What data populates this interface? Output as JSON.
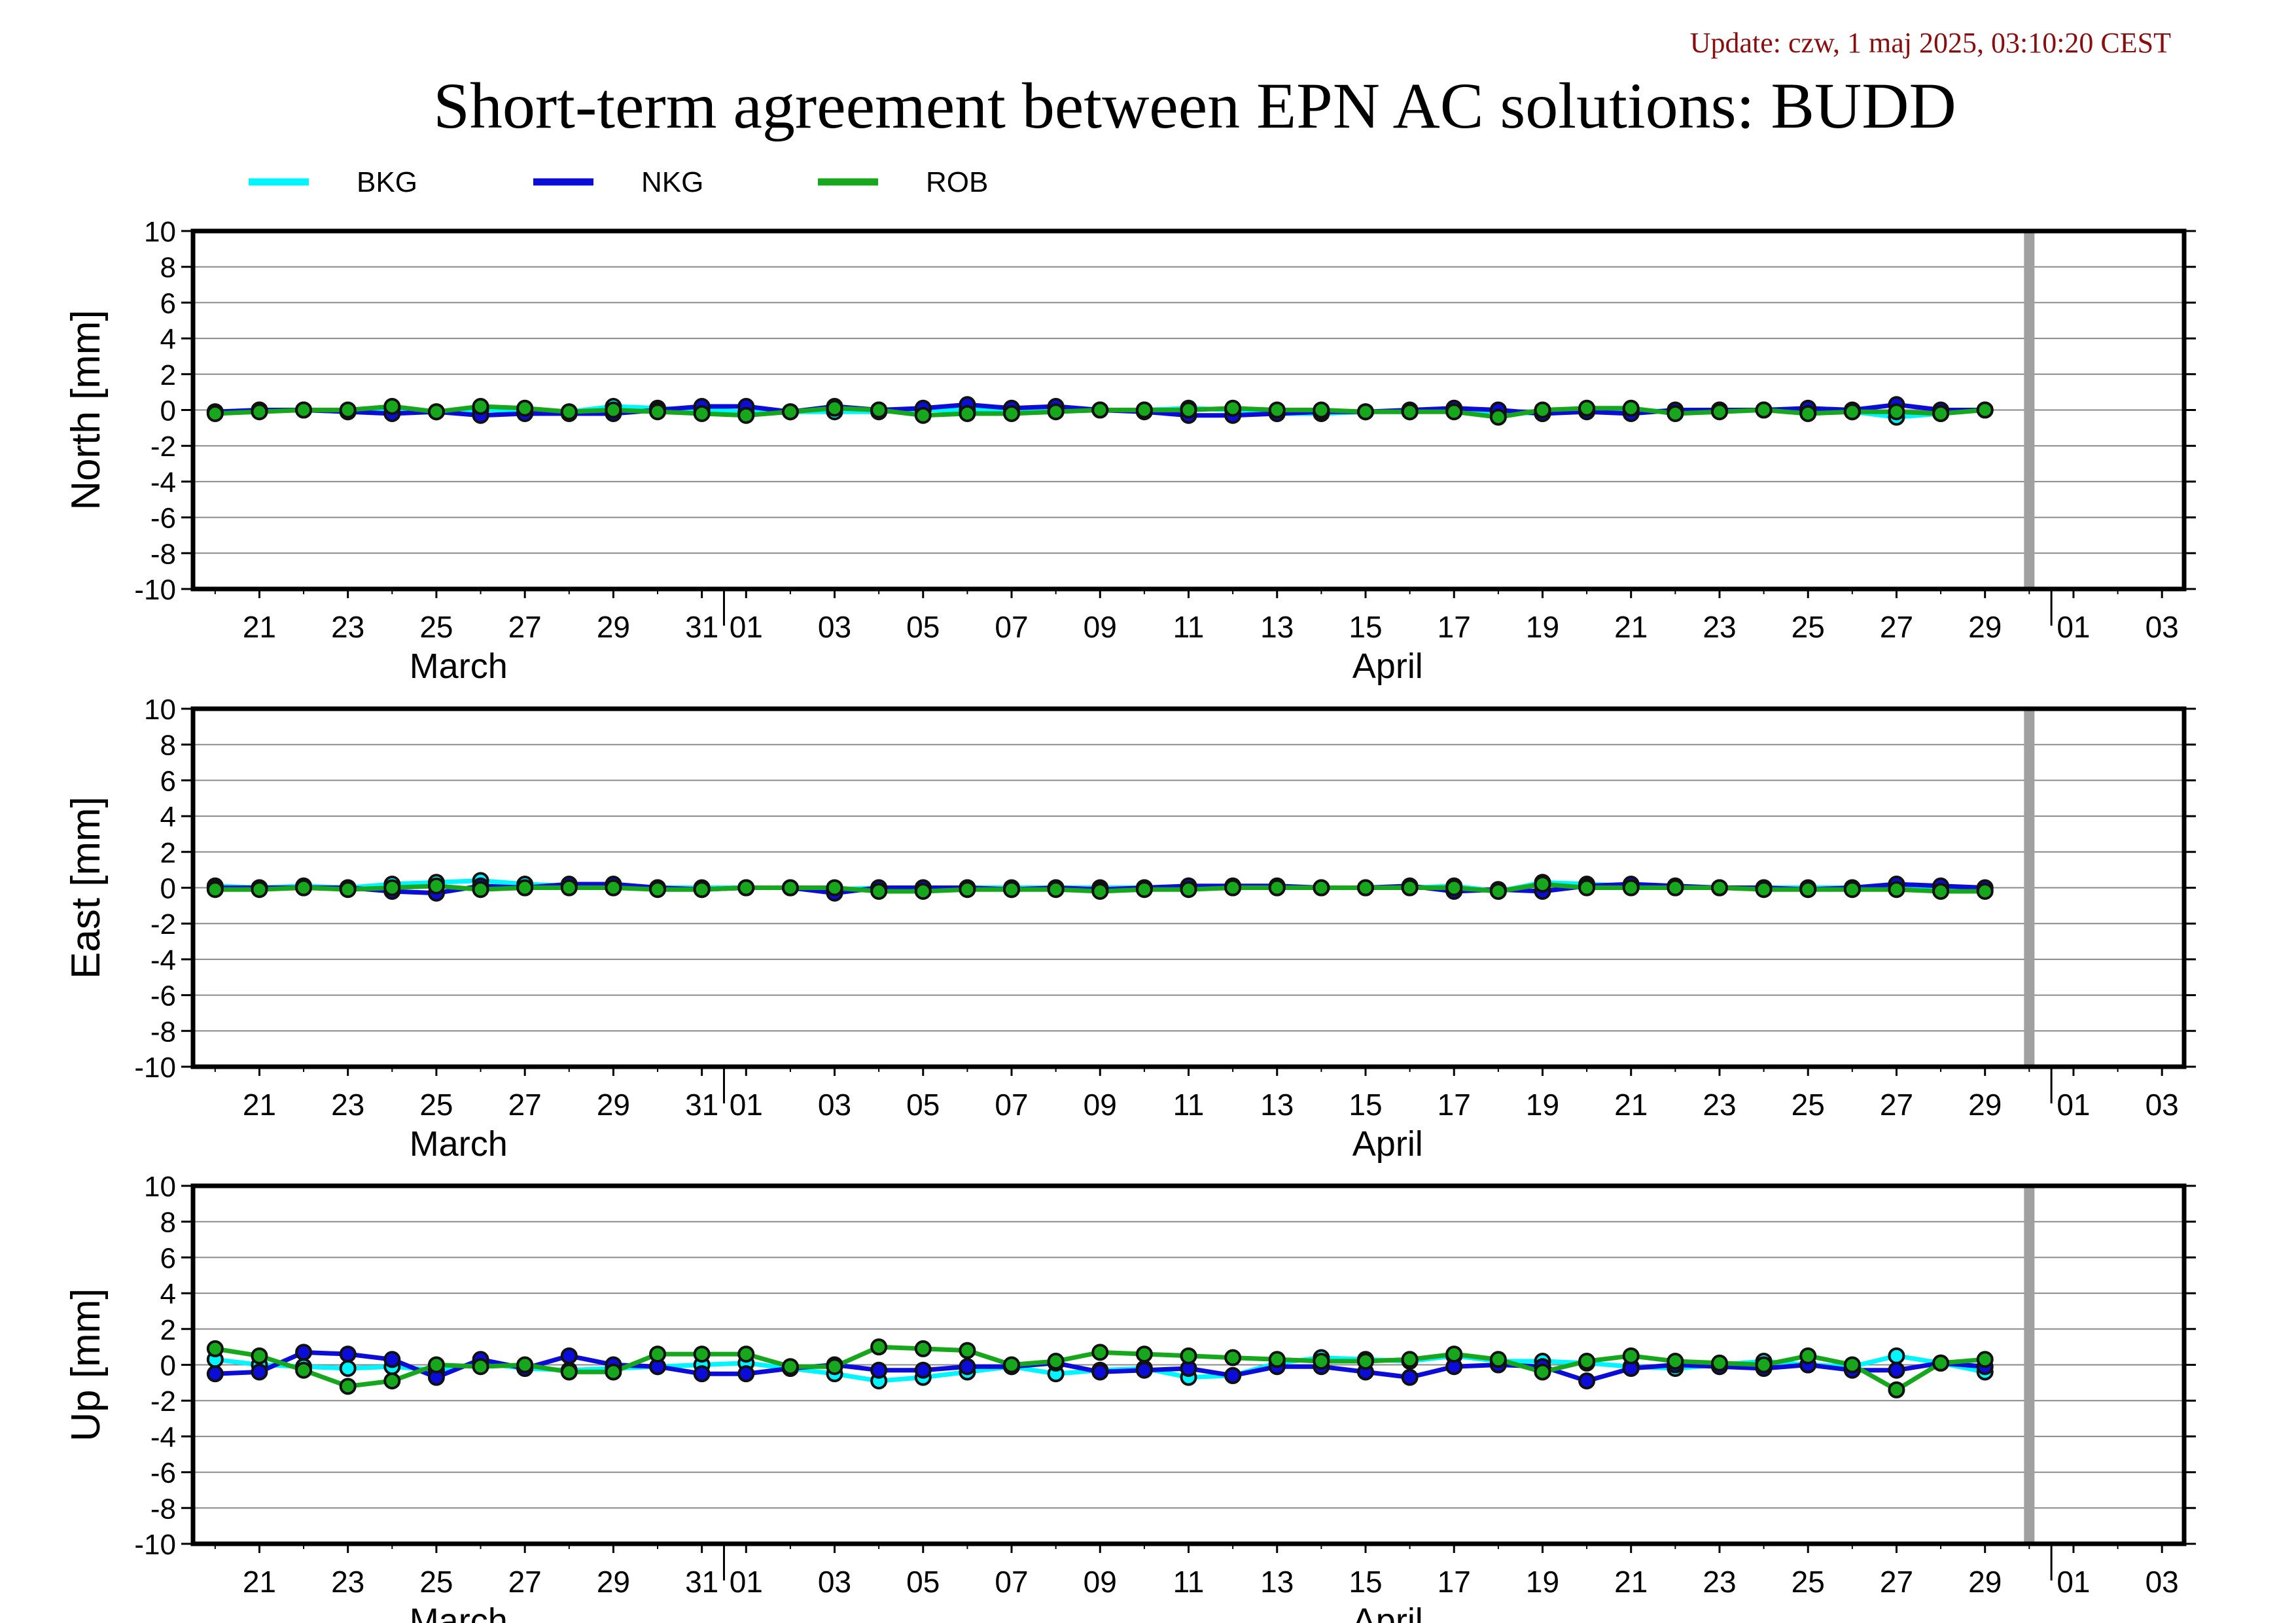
{
  "update_text": "Update: czw, 1 maj 2025, 03:10:20 CEST",
  "title": "Short-term agreement between EPN AC solutions: BUDD",
  "colors": {
    "BKG": "#00f5ff",
    "NKG": "#0c0cd9",
    "ROB": "#17a71c",
    "update_text": "#8b0d0d",
    "marker_band": "#a0a0a0"
  },
  "legend": [
    {
      "name": "BKG",
      "color": "#00f5ff"
    },
    {
      "name": "NKG",
      "color": "#0c0cd9"
    },
    {
      "name": "ROB",
      "color": "#17a71c"
    }
  ],
  "x_axis": {
    "day_ticks": [
      {
        "label": "21",
        "day": 21
      },
      {
        "label": "23",
        "day": 23
      },
      {
        "label": "25",
        "day": 25
      },
      {
        "label": "27",
        "day": 27
      },
      {
        "label": "29",
        "day": 29
      },
      {
        "label": "31",
        "day": 31
      },
      {
        "label": "01",
        "day": 32
      },
      {
        "label": "03",
        "day": 34
      },
      {
        "label": "05",
        "day": 36
      },
      {
        "label": "07",
        "day": 38
      },
      {
        "label": "09",
        "day": 40
      },
      {
        "label": "11",
        "day": 42
      },
      {
        "label": "13",
        "day": 44
      },
      {
        "label": "15",
        "day": 46
      },
      {
        "label": "17",
        "day": 48
      },
      {
        "label": "19",
        "day": 50
      },
      {
        "label": "21",
        "day": 52
      },
      {
        "label": "23",
        "day": 54
      },
      {
        "label": "25",
        "day": 56
      },
      {
        "label": "27",
        "day": 58
      },
      {
        "label": "29",
        "day": 60
      },
      {
        "label": "01",
        "day": 62
      },
      {
        "label": "03",
        "day": 64
      }
    ],
    "month_labels": [
      {
        "label": "March",
        "day": 25.5
      },
      {
        "label": "April",
        "day": 46.5
      }
    ],
    "month_boundaries": [
      31.5,
      61.5
    ],
    "range": [
      19.5,
      64.5
    ],
    "current_day_marker": 61
  },
  "chart_data": [
    {
      "type": "line",
      "title": "",
      "xlabel": "",
      "ylabel": "North [mm]",
      "ylim": [
        -10,
        10
      ],
      "yticks": [
        -10,
        -8,
        -6,
        -4,
        -2,
        0,
        2,
        4,
        6,
        8,
        10
      ],
      "grid": true,
      "x": [
        20,
        21,
        22,
        23,
        24,
        25,
        26,
        27,
        28,
        29,
        30,
        31,
        32,
        33,
        34,
        35,
        36,
        37,
        38,
        39,
        40,
        41,
        42,
        43,
        44,
        45,
        46,
        47,
        48,
        49,
        50,
        51,
        52,
        53,
        54,
        55,
        56,
        57,
        58,
        59,
        60
      ],
      "series": [
        {
          "name": "BKG",
          "values": [
            -0.1,
            0.0,
            0.0,
            -0.1,
            0.1,
            -0.1,
            0.0,
            0.0,
            -0.1,
            0.2,
            0.1,
            0.0,
            -0.1,
            -0.1,
            -0.1,
            -0.1,
            0.0,
            0.0,
            0.0,
            0.1,
            0.0,
            0.0,
            0.1,
            0.0,
            -0.2,
            -0.2,
            -0.1,
            -0.1,
            0.0,
            -0.1,
            -0.2,
            0.0,
            0.0,
            -0.1,
            0.0,
            0.0,
            -0.1,
            -0.1,
            -0.4,
            -0.2,
            0.0
          ]
        },
        {
          "name": "NKG",
          "values": [
            -0.1,
            0.0,
            0.0,
            -0.1,
            -0.2,
            -0.1,
            -0.3,
            -0.2,
            -0.2,
            -0.2,
            0.0,
            0.2,
            0.2,
            -0.1,
            0.2,
            0.0,
            0.1,
            0.3,
            0.1,
            0.2,
            0.0,
            -0.1,
            -0.3,
            -0.3,
            -0.2,
            -0.1,
            -0.1,
            0.0,
            0.1,
            0.0,
            -0.2,
            -0.1,
            -0.2,
            0.0,
            0.0,
            0.0,
            0.1,
            0.0,
            0.3,
            0.0,
            0.0
          ]
        },
        {
          "name": "ROB",
          "values": [
            -0.2,
            -0.1,
            0.0,
            0.0,
            0.2,
            -0.1,
            0.2,
            0.1,
            -0.1,
            0.0,
            -0.1,
            -0.2,
            -0.3,
            -0.1,
            0.1,
            0.0,
            -0.3,
            -0.2,
            -0.2,
            -0.1,
            0.0,
            0.0,
            0.0,
            0.1,
            0.0,
            0.0,
            -0.1,
            -0.1,
            -0.1,
            -0.4,
            0.0,
            0.1,
            0.1,
            -0.2,
            -0.1,
            0.0,
            -0.2,
            -0.1,
            -0.1,
            -0.2,
            0.0
          ]
        }
      ]
    },
    {
      "type": "line",
      "title": "",
      "xlabel": "",
      "ylabel": "East [mm]",
      "ylim": [
        -10,
        10
      ],
      "yticks": [
        -10,
        -8,
        -6,
        -4,
        -2,
        0,
        2,
        4,
        6,
        8,
        10
      ],
      "grid": true,
      "x": [
        20,
        21,
        22,
        23,
        24,
        25,
        26,
        27,
        28,
        29,
        30,
        31,
        32,
        33,
        34,
        35,
        36,
        37,
        38,
        39,
        40,
        41,
        42,
        43,
        44,
        45,
        46,
        47,
        48,
        49,
        50,
        51,
        52,
        53,
        54,
        55,
        56,
        57,
        58,
        59,
        60
      ],
      "series": [
        {
          "name": "BKG",
          "values": [
            0.1,
            0.0,
            0.1,
            0.0,
            0.2,
            0.3,
            0.4,
            0.2,
            0.1,
            0.0,
            0.0,
            0.0,
            0.0,
            0.0,
            -0.1,
            0.0,
            0.0,
            0.0,
            0.0,
            0.0,
            0.0,
            0.0,
            0.1,
            0.0,
            0.0,
            0.0,
            0.0,
            0.0,
            0.1,
            -0.2,
            0.3,
            0.2,
            0.1,
            0.0,
            0.0,
            0.0,
            0.0,
            0.0,
            0.2,
            0.0,
            -0.1
          ]
        },
        {
          "name": "NKG",
          "values": [
            0.0,
            0.0,
            0.0,
            0.0,
            -0.2,
            -0.3,
            0.1,
            0.0,
            0.2,
            0.2,
            0.0,
            -0.1,
            0.0,
            0.0,
            -0.3,
            0.0,
            0.0,
            0.0,
            -0.1,
            0.0,
            -0.1,
            0.0,
            0.1,
            0.1,
            0.1,
            0.0,
            0.0,
            0.1,
            -0.2,
            -0.1,
            -0.2,
            0.1,
            0.2,
            0.1,
            0.0,
            0.0,
            -0.1,
            0.0,
            0.2,
            0.1,
            0.0
          ]
        },
        {
          "name": "ROB",
          "values": [
            -0.1,
            -0.1,
            0.0,
            -0.1,
            0.0,
            0.1,
            -0.1,
            0.0,
            0.0,
            0.0,
            -0.1,
            -0.1,
            0.0,
            0.0,
            0.0,
            -0.2,
            -0.2,
            -0.1,
            -0.1,
            -0.1,
            -0.2,
            -0.1,
            -0.1,
            0.0,
            0.0,
            0.0,
            0.0,
            0.0,
            0.0,
            -0.2,
            0.2,
            0.0,
            0.0,
            0.0,
            0.0,
            -0.1,
            -0.1,
            -0.1,
            -0.1,
            -0.2,
            -0.2
          ]
        }
      ]
    },
    {
      "type": "line",
      "title": "",
      "xlabel": "",
      "ylabel": "Up [mm]",
      "ylim": [
        -10,
        10
      ],
      "yticks": [
        -10,
        -8,
        -6,
        -4,
        -2,
        0,
        2,
        4,
        6,
        8,
        10
      ],
      "grid": true,
      "x": [
        20,
        21,
        22,
        23,
        24,
        25,
        26,
        27,
        28,
        29,
        30,
        31,
        32,
        33,
        34,
        35,
        36,
        37,
        38,
        39,
        40,
        41,
        42,
        43,
        44,
        45,
        46,
        47,
        48,
        49,
        50,
        51,
        52,
        53,
        54,
        55,
        56,
        57,
        58,
        59,
        60
      ],
      "series": [
        {
          "name": "BKG",
          "values": [
            0.3,
            0.0,
            -0.1,
            -0.2,
            -0.1,
            -0.3,
            0.1,
            -0.2,
            -0.3,
            -0.2,
            -0.1,
            0.0,
            0.1,
            -0.2,
            -0.5,
            -0.9,
            -0.7,
            -0.4,
            -0.1,
            -0.5,
            -0.3,
            -0.2,
            -0.7,
            -0.6,
            0.1,
            0.4,
            0.3,
            0.2,
            0.5,
            0.2,
            0.2,
            0.1,
            -0.1,
            -0.2,
            0.0,
            0.2,
            0.0,
            -0.1,
            0.5,
            0.1,
            -0.4
          ]
        },
        {
          "name": "NKG",
          "values": [
            -0.5,
            -0.4,
            0.7,
            0.6,
            0.3,
            -0.7,
            0.3,
            -0.2,
            0.5,
            0.0,
            -0.1,
            -0.5,
            -0.5,
            -0.2,
            0.0,
            -0.3,
            -0.3,
            -0.1,
            -0.1,
            0.1,
            -0.4,
            -0.3,
            -0.2,
            -0.6,
            -0.1,
            -0.1,
            -0.4,
            -0.7,
            -0.1,
            0.0,
            -0.1,
            -0.9,
            -0.2,
            0.0,
            -0.1,
            -0.2,
            0.0,
            -0.3,
            -0.3,
            0.1,
            -0.1
          ]
        },
        {
          "name": "ROB",
          "values": [
            0.9,
            0.5,
            -0.3,
            -1.2,
            -0.9,
            0.0,
            -0.1,
            0.0,
            -0.4,
            -0.4,
            0.6,
            0.6,
            0.6,
            -0.1,
            -0.1,
            1.0,
            0.9,
            0.8,
            0.0,
            0.2,
            0.7,
            0.6,
            0.5,
            0.4,
            0.3,
            0.2,
            0.2,
            0.3,
            0.6,
            0.3,
            -0.4,
            0.2,
            0.5,
            0.2,
            0.1,
            0.0,
            0.5,
            0.0,
            -1.4,
            0.1,
            0.3
          ]
        }
      ]
    }
  ]
}
